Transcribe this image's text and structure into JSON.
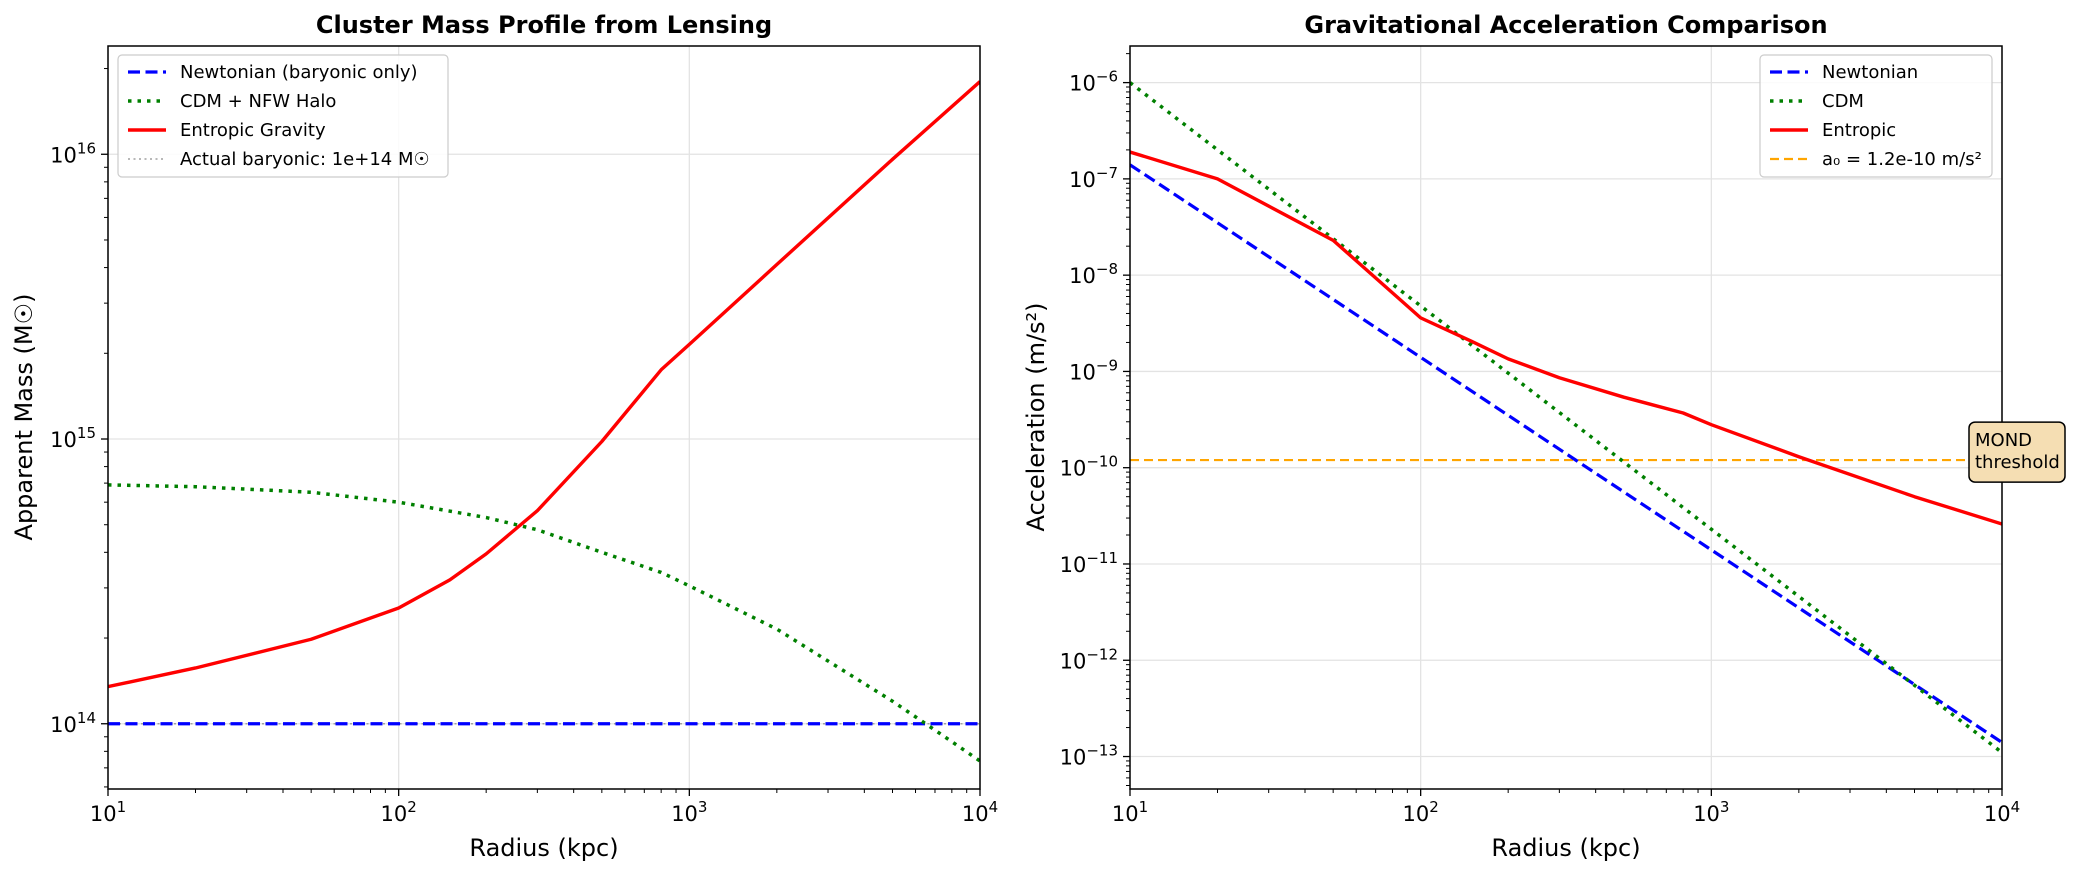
{
  "chart_data": [
    {
      "type": "line",
      "title": "Cluster Mass Profile from Lensing",
      "xlabel": "Radius (kpc)",
      "ylabel": "Apparent Mass (M☉)",
      "xscale": "log",
      "yscale": "log",
      "xlim": [
        10,
        10000
      ],
      "ylim": [
        59000000000000.0,
        2.4e+16
      ],
      "x_tick_labels": [
        {
          "base": "10",
          "exp": "1"
        },
        {
          "base": "10",
          "exp": "2"
        },
        {
          "base": "10",
          "exp": "3"
        },
        {
          "base": "10",
          "exp": "4"
        }
      ],
      "y_tick_labels": [
        {
          "base": "10",
          "exp": "14"
        },
        {
          "base": "10",
          "exp": "15"
        },
        {
          "base": "10",
          "exp": "16"
        }
      ],
      "grid": true,
      "legend_position": "top-left",
      "series": [
        {
          "name": "Newtonian (baryonic only)",
          "color": "#0000ff",
          "style": "dashed",
          "x": [
            10,
            100,
            1000,
            10000
          ],
          "y": [
            100000000000000.0,
            100000000000000.0,
            100000000000000.0,
            100000000000000.0
          ]
        },
        {
          "name": "CDM + NFW Halo",
          "color": "#008000",
          "style": "dotted",
          "x": [
            10,
            20,
            50,
            100,
            200,
            300,
            500,
            800,
            1000,
            2000,
            5000,
            7000,
            10000
          ],
          "y": [
            690000000000000.0,
            680000000000000.0,
            650000000000000.0,
            600000000000000.0,
            530000000000000.0,
            480000000000000.0,
            400000000000000.0,
            340000000000000.0,
            305000000000000.0,
            215000000000000.0,
            120000000000000.0,
            95000000000000.0,
            74000000000000.0
          ]
        },
        {
          "name": "Entropic Gravity",
          "color": "#ff0000",
          "style": "solid",
          "x": [
            10,
            20,
            50,
            100,
            150,
            200,
            300,
            500,
            800,
            1000,
            2000,
            5000,
            10000
          ],
          "y": [
            135000000000000.0,
            157000000000000.0,
            198000000000000.0,
            255000000000000.0,
            320000000000000.0,
            395000000000000.0,
            560000000000000.0,
            980000000000000.0,
            1750000000000000.0,
            2150000000000000.0,
            4100000000000000.0,
            9600000000000000.0,
            1.8e+16
          ]
        },
        {
          "name": "Actual baryonic: 1e+14 M☉",
          "color": "#a0a0a0",
          "style": "dotted-thin",
          "x": [
            10,
            10000
          ],
          "y": [
            100000000000000.0,
            100000000000000.0
          ]
        }
      ]
    },
    {
      "type": "line",
      "title": "Gravitational Acceleration Comparison",
      "xlabel": "Radius (kpc)",
      "ylabel": "Acceleration (m/s²)",
      "xscale": "log",
      "yscale": "log",
      "xlim": [
        10,
        10000
      ],
      "ylim": [
        4.6e-14,
        2.4e-06
      ],
      "x_tick_labels": [
        {
          "base": "10",
          "exp": "1"
        },
        {
          "base": "10",
          "exp": "2"
        },
        {
          "base": "10",
          "exp": "3"
        },
        {
          "base": "10",
          "exp": "4"
        }
      ],
      "y_tick_labels": [
        {
          "base": "10",
          "exp": "−6"
        },
        {
          "base": "10",
          "exp": "−7"
        },
        {
          "base": "10",
          "exp": "−8"
        },
        {
          "base": "10",
          "exp": "−9"
        },
        {
          "base": "10",
          "exp": "−10"
        },
        {
          "base": "10",
          "exp": "−11"
        },
        {
          "base": "10",
          "exp": "−12"
        },
        {
          "base": "10",
          "exp": "−13"
        }
      ],
      "grid": true,
      "legend_position": "top-right",
      "annotation": {
        "lines": [
          "MOND",
          "threshold"
        ],
        "y": 1.2e-10
      },
      "series": [
        {
          "name": "Newtonian",
          "color": "#0000ff",
          "style": "dashed",
          "x": [
            10,
            10000
          ],
          "y": [
            1.4e-07,
            1.4e-13
          ]
        },
        {
          "name": "CDM",
          "color": "#008000",
          "style": "dotted",
          "x": [
            10,
            10000
          ],
          "y": [
            1e-06,
            1.1e-13
          ]
        },
        {
          "name": "Entropic",
          "color": "#ff0000",
          "style": "solid",
          "x": [
            10,
            20,
            50,
            100,
            150,
            200,
            300,
            500,
            800,
            1000,
            2000,
            5000,
            10000
          ],
          "y": [
            1.9e-07,
            1e-07,
            2.3e-08,
            3.6e-09,
            2.05e-09,
            1.35e-09,
            8.6e-10,
            5.4e-10,
            3.7e-10,
            2.8e-10,
            1.3e-10,
            5e-11,
            2.6e-11
          ]
        },
        {
          "name": "a₀ = 1.2e-10 m/s²",
          "color": "#ffa500",
          "style": "dashed-thin",
          "x": [
            10,
            10000
          ],
          "y": [
            1.2e-10,
            1.2e-10
          ]
        }
      ]
    }
  ]
}
